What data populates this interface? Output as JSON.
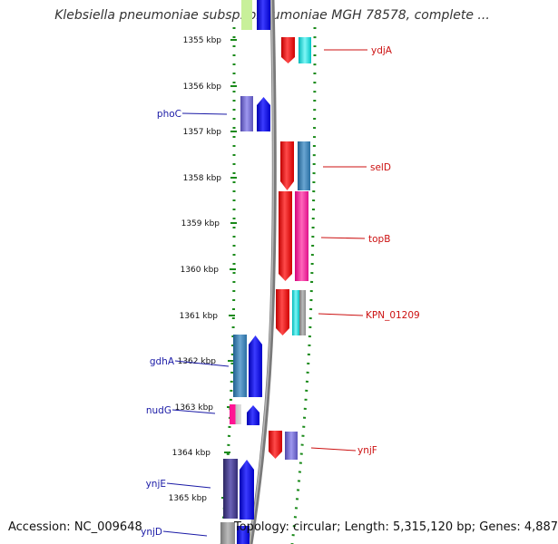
{
  "title": "Klebsiella pneumoniae subsp. pneumoniae MGH 78578, complete ...",
  "footer": {
    "accession": "Accession: NC_009648",
    "summary": "Topology: circular; Length: 5,315,120 bp; Genes: 4,887"
  },
  "ticks": [
    "1355 kbp",
    "1356 kbp",
    "1357 kbp",
    "1358 kbp",
    "1359 kbp",
    "1360 kbp",
    "1361 kbp",
    "1362 kbp",
    "1363 kbp",
    "1364 kbp",
    "1365 kbp"
  ],
  "genes_left": [
    "phoC",
    "gdhA",
    "nudG",
    "ynjE",
    "ynjD"
  ],
  "genes_right": [
    "ydjA",
    "selD",
    "topB",
    "KPN_01209",
    "ynjF"
  ],
  "colors": {
    "red": "#ff0000",
    "cyan": "#00e0e0",
    "blue": "#0000ff",
    "purple": "#6a5acd",
    "steel": "#2e7fb8",
    "magenta": "#ff1493",
    "navy": "#38307a",
    "dotted": "#1a8a1a"
  }
}
